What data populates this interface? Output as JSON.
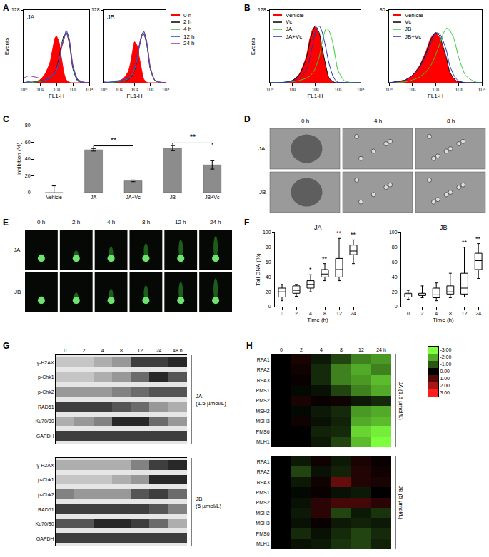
{
  "chart_data": [
    {
      "panel": "A",
      "type": "line",
      "title": "JA",
      "xlabel": "FL1-H",
      "ylabel": "Events",
      "log": "x",
      "x": [
        1,
        2,
        5,
        10,
        20,
        40,
        60,
        80,
        100,
        150,
        200,
        300,
        400,
        600,
        800,
        1000,
        2000,
        5000,
        10000
      ],
      "xlim": [
        1,
        10000
      ],
      "xticks": [
        {
          "value": 1,
          "label": "10⁰"
        },
        {
          "value": 10,
          "label": "10¹"
        },
        {
          "value": 100,
          "label": "10²"
        },
        {
          "value": 1000,
          "label": "10³"
        },
        {
          "value": 10000,
          "label": "10⁴"
        }
      ],
      "ylim": [
        0,
        128
      ],
      "yticks": [
        128
      ],
      "series": [
        {
          "name": "0 h",
          "type": "area",
          "color": "#ff0000",
          "values": [
            0,
            0,
            2,
            5,
            15,
            35,
            60,
            78,
            82,
            70,
            45,
            15,
            5,
            1,
            0,
            0,
            0,
            0,
            0
          ]
        },
        {
          "name": "2 h",
          "color": "#000000",
          "values": [
            0,
            0,
            1,
            2,
            4,
            8,
            12,
            18,
            25,
            45,
            65,
            85,
            88,
            70,
            45,
            25,
            3,
            0,
            0
          ]
        },
        {
          "name": "4 h",
          "color": "#3cb043",
          "values": [
            0,
            0,
            1,
            2,
            4,
            8,
            12,
            16,
            22,
            40,
            62,
            82,
            90,
            75,
            48,
            28,
            4,
            0,
            0
          ]
        },
        {
          "name": "12 h",
          "color": "#1f3fd0",
          "values": [
            0,
            2,
            3,
            3,
            5,
            8,
            12,
            16,
            22,
            38,
            60,
            80,
            92,
            78,
            50,
            30,
            5,
            0,
            0
          ]
        },
        {
          "name": "24 h",
          "color": "#9b30a0",
          "values": [
            8,
            12,
            10,
            8,
            8,
            10,
            14,
            18,
            24,
            40,
            60,
            78,
            88,
            76,
            52,
            32,
            6,
            1,
            0
          ]
        }
      ]
    },
    {
      "type": "line",
      "title": "JB",
      "xlabel": "FL1-H",
      "log": "x",
      "legend": "right",
      "x": [
        1,
        2,
        5,
        10,
        20,
        40,
        60,
        80,
        100,
        150,
        200,
        300,
        400,
        600,
        800,
        1000,
        2000,
        5000,
        10000
      ],
      "xlim": [
        1,
        10000
      ],
      "xticks": [
        {
          "value": 1,
          "label": "10⁰"
        },
        {
          "value": 10,
          "label": "10¹"
        },
        {
          "value": 100,
          "label": "10²"
        },
        {
          "value": 1000,
          "label": "10³"
        },
        {
          "value": 10000,
          "label": "10⁴"
        }
      ],
      "ylim": [
        0,
        128
      ],
      "yticks": [
        128
      ],
      "series": [
        {
          "name": "0 h",
          "type": "area",
          "color": "#ff0000",
          "values": [
            0,
            0,
            1,
            3,
            8,
            20,
            40,
            60,
            72,
            65,
            45,
            20,
            6,
            1,
            0,
            0,
            0,
            0,
            0
          ]
        },
        {
          "name": "2 h",
          "color": "#000000",
          "values": [
            0,
            0,
            1,
            2,
            4,
            6,
            10,
            15,
            22,
            40,
            62,
            82,
            85,
            68,
            45,
            25,
            4,
            0,
            0
          ]
        },
        {
          "name": "4 h",
          "color": "#3cb043",
          "values": [
            0,
            0,
            1,
            2,
            4,
            7,
            11,
            16,
            24,
            42,
            64,
            84,
            88,
            70,
            46,
            26,
            4,
            0,
            0
          ]
        },
        {
          "name": "12 h",
          "color": "#1f3fd0",
          "values": [
            0,
            1,
            2,
            3,
            5,
            8,
            12,
            18,
            26,
            45,
            66,
            86,
            90,
            72,
            48,
            28,
            5,
            0,
            0
          ]
        },
        {
          "name": "24 h",
          "color": "#9b30a0",
          "values": [
            2,
            3,
            3,
            4,
            6,
            9,
            13,
            18,
            25,
            42,
            64,
            84,
            90,
            74,
            50,
            30,
            5,
            1,
            0
          ]
        }
      ]
    },
    {
      "panel": "B",
      "type": "line",
      "xlabel": "FL1-H",
      "ylabel": "Events",
      "log": "x",
      "legend": "top left",
      "x": [
        1,
        2,
        5,
        10,
        20,
        40,
        60,
        80,
        100,
        150,
        200,
        300,
        400,
        600,
        800,
        1000,
        2000,
        5000,
        10000
      ],
      "xlim": [
        1,
        10000
      ],
      "xticks": [
        {
          "value": 1,
          "label": "10⁰"
        },
        {
          "value": 10,
          "label": "10¹"
        },
        {
          "value": 100,
          "label": "10²"
        },
        {
          "value": 1000,
          "label": "10³"
        },
        {
          "value": 10000,
          "label": "10⁴"
        }
      ],
      "ylim": [
        0,
        128
      ],
      "yticks": [
        128
      ],
      "series": [
        {
          "name": "Vehicle",
          "type": "area",
          "color": "#ff0000",
          "values": [
            0,
            0,
            1,
            4,
            15,
            45,
            80,
            95,
            98,
            85,
            60,
            25,
            8,
            2,
            0,
            0,
            0,
            0,
            0
          ]
        },
        {
          "name": "Vc",
          "color": "#000000",
          "values": [
            0,
            0,
            1,
            4,
            14,
            42,
            75,
            92,
            100,
            88,
            62,
            28,
            9,
            2,
            0,
            0,
            0,
            0,
            0
          ]
        },
        {
          "name": "JA",
          "color": "#33cc33",
          "values": [
            0,
            0,
            1,
            2,
            4,
            8,
            12,
            18,
            25,
            45,
            70,
            95,
            92,
            70,
            42,
            22,
            3,
            0,
            0
          ]
        },
        {
          "name": "JA+Vc",
          "color": "#2233bb",
          "values": [
            0,
            0,
            1,
            3,
            8,
            22,
            45,
            70,
            88,
            100,
            90,
            60,
            35,
            12,
            4,
            1,
            0,
            0,
            0
          ]
        }
      ]
    },
    {
      "type": "line",
      "xlabel": "FL1-H",
      "log": "x",
      "legend": "top left",
      "x": [
        1,
        2,
        5,
        10,
        20,
        40,
        60,
        80,
        100,
        150,
        200,
        300,
        400,
        600,
        800,
        1000,
        2000,
        5000,
        10000
      ],
      "xlim": [
        1,
        10000
      ],
      "xticks": [
        {
          "value": 1,
          "label": "10⁰"
        },
        {
          "value": 10,
          "label": "10¹"
        },
        {
          "value": 100,
          "label": "10²"
        },
        {
          "value": 1000,
          "label": "10³"
        },
        {
          "value": 10000,
          "label": "10⁴"
        }
      ],
      "ylim": [
        0,
        80
      ],
      "yticks": [
        80
      ],
      "series": [
        {
          "name": "Vehicle",
          "type": "area",
          "color": "#ff0000",
          "values": [
            0,
            1,
            3,
            8,
            18,
            35,
            48,
            53,
            55,
            50,
            40,
            25,
            12,
            5,
            2,
            1,
            0,
            0,
            0
          ]
        },
        {
          "name": "Vc",
          "color": "#000000",
          "values": [
            0,
            1,
            3,
            8,
            17,
            33,
            46,
            52,
            55,
            52,
            42,
            27,
            13,
            5,
            2,
            1,
            0,
            0,
            0
          ]
        },
        {
          "name": "JB",
          "color": "#33cc33",
          "values": [
            0,
            0,
            1,
            3,
            6,
            12,
            18,
            24,
            30,
            42,
            52,
            60,
            58,
            50,
            38,
            28,
            8,
            1,
            0
          ]
        },
        {
          "name": "JB+Vc",
          "color": "#2233bb",
          "values": [
            0,
            1,
            3,
            8,
            16,
            30,
            42,
            50,
            55,
            54,
            48,
            35,
            20,
            9,
            4,
            2,
            0,
            0,
            0
          ]
        }
      ]
    },
    {
      "panel": "C",
      "type": "bar",
      "ylabel": "Inhibition (%)",
      "categories": [
        "Vehicle",
        "JA",
        "JA+Vc",
        "JB",
        "JB+Vc"
      ],
      "values": [
        0,
        51,
        14,
        53,
        33
      ],
      "errors": [
        8,
        1.5,
        1,
        3,
        5
      ],
      "color": "#8c8c8c",
      "ylim": [
        0,
        80
      ],
      "yticks": [
        0,
        20,
        40,
        60,
        80
      ],
      "annotations": [
        {
          "from": "JA",
          "to": "JA+Vc",
          "text": "**"
        },
        {
          "from": "JB",
          "to": "JB+Vc",
          "text": "**"
        }
      ]
    },
    {
      "panel": "F",
      "type": "box",
      "title": "JA",
      "xlabel": "Time (h)",
      "ylabel": "Tail DNA (%)",
      "categories": [
        "0",
        "2",
        "4",
        "8",
        "12",
        "24"
      ],
      "min": [
        8,
        14,
        20,
        35,
        35,
        58
      ],
      "q1": [
        13,
        18,
        25,
        40,
        40,
        70
      ],
      "median": [
        20,
        22,
        30,
        44,
        50,
        75
      ],
      "q3": [
        25,
        28,
        35,
        50,
        65,
        83
      ],
      "max": [
        30,
        30,
        43,
        58,
        92,
        90
      ],
      "significance": [
        null,
        null,
        "*",
        "**",
        "**",
        "**"
      ],
      "ylim": [
        0,
        100
      ],
      "yticks": [
        0,
        20,
        40,
        60,
        80,
        100
      ]
    },
    {
      "type": "box",
      "title": "JB",
      "xlabel": "Time (h)",
      "categories": [
        "0",
        "2",
        "4",
        "8",
        "12",
        "24"
      ],
      "min": [
        10,
        12,
        8,
        12,
        13,
        38
      ],
      "q1": [
        13,
        15,
        12,
        17,
        17,
        50
      ],
      "median": [
        16,
        16,
        16,
        20,
        25,
        62
      ],
      "q3": [
        18,
        18,
        25,
        28,
        45,
        72
      ],
      "max": [
        22,
        28,
        32,
        45,
        80,
        85
      ],
      "significance": [
        null,
        null,
        null,
        null,
        "**",
        "**"
      ],
      "ylim": [
        0,
        100
      ],
      "yticks": [
        0,
        20,
        40,
        60,
        80,
        100
      ]
    },
    {
      "panel": "G",
      "type": "heatmap",
      "title": "JA",
      "subtitle": "(1.5 µmol/L)",
      "columns": [
        "0",
        "2",
        "4",
        "8",
        "12",
        "24",
        "48 h"
      ],
      "rows": [
        "γ-H2AX",
        "p-Chk1",
        "p-Chk2",
        "RAD51",
        "Ku70/80",
        "GAPDH"
      ],
      "cells": [
        [
          0.2,
          0.2,
          0.3,
          0.4,
          0.8,
          0.8,
          0.9
        ],
        [
          0.2,
          0.2,
          0.3,
          0.4,
          0.6,
          0.9,
          0.7
        ],
        [
          0.4,
          0.4,
          0.4,
          0.5,
          0.6,
          0.7,
          0.7
        ],
        [
          0.8,
          0.8,
          0.8,
          0.7,
          0.6,
          0.4,
          0.3
        ],
        [
          0.3,
          0.4,
          0.5,
          0.9,
          0.9,
          0.6,
          0.4
        ],
        [
          0.8,
          0.8,
          0.8,
          0.8,
          0.8,
          0.8,
          0.8
        ]
      ],
      "zlim": [
        0,
        1
      ]
    },
    {
      "type": "heatmap",
      "title": "JB",
      "subtitle": "(5 µmol/L)",
      "tick_labels": "y",
      "columns": [
        "0",
        "2",
        "4",
        "8",
        "12",
        "24",
        "48 h"
      ],
      "rows": [
        "γ-H2AX",
        "p-Chk1",
        "p-Chk2",
        "RAD51",
        "Ku70/80",
        "GAPDH"
      ],
      "cells": [
        [
          0.3,
          0.3,
          0.3,
          0.3,
          0.5,
          0.8,
          0.9
        ],
        [
          0.2,
          0.2,
          0.2,
          0.3,
          0.4,
          0.9,
          0.9
        ],
        [
          0.5,
          0.4,
          0.4,
          0.4,
          0.7,
          0.8,
          0.6
        ],
        [
          0.8,
          0.8,
          0.8,
          0.8,
          0.8,
          0.7,
          0.5
        ],
        [
          0.7,
          0.7,
          0.9,
          0.9,
          0.8,
          0.6,
          0.3
        ],
        [
          0.8,
          0.8,
          0.8,
          0.8,
          0.8,
          0.8,
          0.8
        ]
      ],
      "zlim": [
        0,
        1
      ]
    },
    {
      "panel": "H",
      "type": "heatmap",
      "title": "JA",
      "subtitle": "(1.5 µmol/L)",
      "columns": [
        "0",
        "2",
        "4",
        "8",
        "12",
        "24 h"
      ],
      "rows": [
        "RPA1",
        "RPA2",
        "RPA3",
        "PMS1",
        "PMS2",
        "MSH2",
        "MSH3",
        "PMS6",
        "MLH1"
      ],
      "cells": [
        [
          0,
          0.3,
          -0.3,
          -0.8,
          -1.5,
          -1.8
        ],
        [
          0,
          0.2,
          -0.5,
          -1.5,
          -2.0,
          -1.5
        ],
        [
          0,
          0.1,
          -0.5,
          -1.5,
          -1.8,
          -2.2
        ],
        [
          0,
          -0.1,
          -0.2,
          -0.8,
          -1.5,
          -2.0
        ],
        [
          0,
          0.3,
          0.1,
          0.2,
          -0.3,
          -0.5
        ],
        [
          0,
          -0.1,
          -0.3,
          -0.5,
          -1.8,
          -2.0
        ],
        [
          0,
          0.2,
          -0.2,
          -0.4,
          -2.0,
          -2.2
        ],
        [
          0,
          0,
          -0.4,
          -0.5,
          -2.5,
          -2.8
        ],
        [
          0,
          0,
          -0.3,
          -0.8,
          -2.2,
          -3.0
        ]
      ],
      "zlim": [
        -3,
        3
      ],
      "zticks": [
        {
          "value": -3,
          "label": "-3.00"
        },
        {
          "value": -2,
          "label": "-2.00"
        },
        {
          "value": -1,
          "label": "-1.00"
        },
        {
          "value": 0,
          "label": "0.00"
        },
        {
          "value": 1,
          "label": "1.00"
        },
        {
          "value": 2,
          "label": "2.00"
        },
        {
          "value": 3,
          "label": "3.00"
        }
      ]
    },
    {
      "type": "heatmap",
      "title": "JB",
      "subtitle": "(5 µmol/L)",
      "tick_labels": "y",
      "columns": [
        "0",
        "2",
        "4",
        "8",
        "12",
        "24 h"
      ],
      "rows": [
        "RPA1",
        "RPA2",
        "RPA3",
        "PMS1",
        "PMS2",
        "MSH2",
        "MSH3",
        "PMS6",
        "MLH1"
      ],
      "cells": [
        [
          0,
          -0.3,
          0.2,
          -0.3,
          0.3,
          0.1
        ],
        [
          0,
          -0.8,
          -0.2,
          -0.4,
          0.4,
          0.2
        ],
        [
          0,
          -0.3,
          0.2,
          1.2,
          0.4,
          0.3
        ],
        [
          0,
          -0.1,
          0.1,
          -0.2,
          -0.3,
          0.0
        ],
        [
          0,
          -0.2,
          0.5,
          0.8,
          0.8,
          0.5
        ],
        [
          0,
          -0.3,
          0.5,
          -0.8,
          -0.3,
          -0.6
        ],
        [
          0,
          -0.2,
          0.1,
          -0.3,
          -0.4,
          -0.3
        ],
        [
          0,
          -0.5,
          -0.2,
          -0.5,
          -0.8,
          -0.5
        ],
        [
          0,
          -0.2,
          -0.3,
          -0.6,
          -0.8,
          -0.4
        ]
      ],
      "zlim": [
        -3,
        3
      ]
    }
  ],
  "panel_D": {
    "panel": "D",
    "columns": [
      "0 h",
      "4 h",
      "8 h"
    ],
    "rows": [
      "JA",
      "JB"
    ]
  },
  "panel_E": {
    "panel": "E",
    "columns": [
      "0 h",
      "2 h",
      "4 h",
      "8 h",
      "12 h",
      "24 h"
    ],
    "rows": [
      "JA",
      "JB"
    ]
  }
}
